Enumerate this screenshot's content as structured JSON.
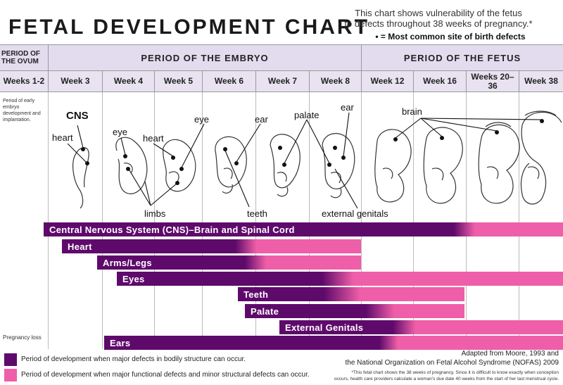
{
  "title": "FETAL DEVELOPMENT CHART",
  "note_line1": "This chart shows vulnerability of the fetus",
  "note_line2": "to defects throughout 38 weeks of pregnancy.*",
  "key_note": "• = Most common site of birth defects",
  "periods": {
    "ovum": "PERIOD OF THE OVUM",
    "embryo": "PERIOD OF THE EMBRYO",
    "fetus": "PERIOD OF THE FETUS"
  },
  "weeks": [
    "Weeks 1-2",
    "Week 3",
    "Week 4",
    "Week 5",
    "Week 6",
    "Week 7",
    "Week 8",
    "Week 12",
    "Week 16",
    "Weeks 20–36",
    "Week 38"
  ],
  "ovum_note": "Period of early embryo development and implantation.",
  "pregnancy_loss": "Pregnancy loss",
  "labels": {
    "cns": "CNS",
    "heart": "heart",
    "eye_w4": "eye",
    "heart_w4": "heart",
    "eye_w5": "eye",
    "ear_w6": "ear",
    "palate": "palate",
    "ear_w8": "ear",
    "brain": "brain",
    "limbs": "limbs",
    "teeth": "teeth",
    "external_genitals": "external genitals"
  },
  "bars": [
    {
      "label": "Central Nervous System (CNS)–Brain and Spinal Cord",
      "start_week": 3,
      "major_until_week": 16,
      "end_week": 38
    },
    {
      "label": "Heart",
      "start_week": 3,
      "major_until_week": 6,
      "end_week": 8
    },
    {
      "label": "Arms/Legs",
      "start_week": 4,
      "major_until_week": 7,
      "end_week": 8
    },
    {
      "label": "Eyes",
      "start_week": 4,
      "major_until_week": 8,
      "end_week": 38
    },
    {
      "label": "Teeth",
      "start_week": 6,
      "major_until_week": 8,
      "end_week": 16
    },
    {
      "label": "Palate",
      "start_week": 6,
      "major_until_week": 9,
      "end_week": 16
    },
    {
      "label": "External Genitals",
      "start_week": 7,
      "major_until_week": 9,
      "end_week": 38
    },
    {
      "label": "Ears",
      "start_week": 3,
      "major_until_week": 9,
      "end_week": 38
    }
  ],
  "colors": {
    "major": "#5e0a6b",
    "minor": "#ef5ea8",
    "header": "#e3dcef"
  },
  "legend": {
    "major": "Period of development when major defects in bodily structure can occur.",
    "minor": "Period of development when major functional defects and minor structural defects can occur."
  },
  "credit_line1": "Adapted from Moore, 1993 and",
  "credit_line2": "the National Organization on Fetal Alcohol Syndrome (NOFAS) 2009",
  "footnote_line1": "*This fetal chart shows the 38 weeks of pregnancy. Since it is difficult to know exactly when conception",
  "footnote_line2": "occurs, health care providers calculate a woman's due date 40 weeks from the start of her last menstrual cycle."
}
